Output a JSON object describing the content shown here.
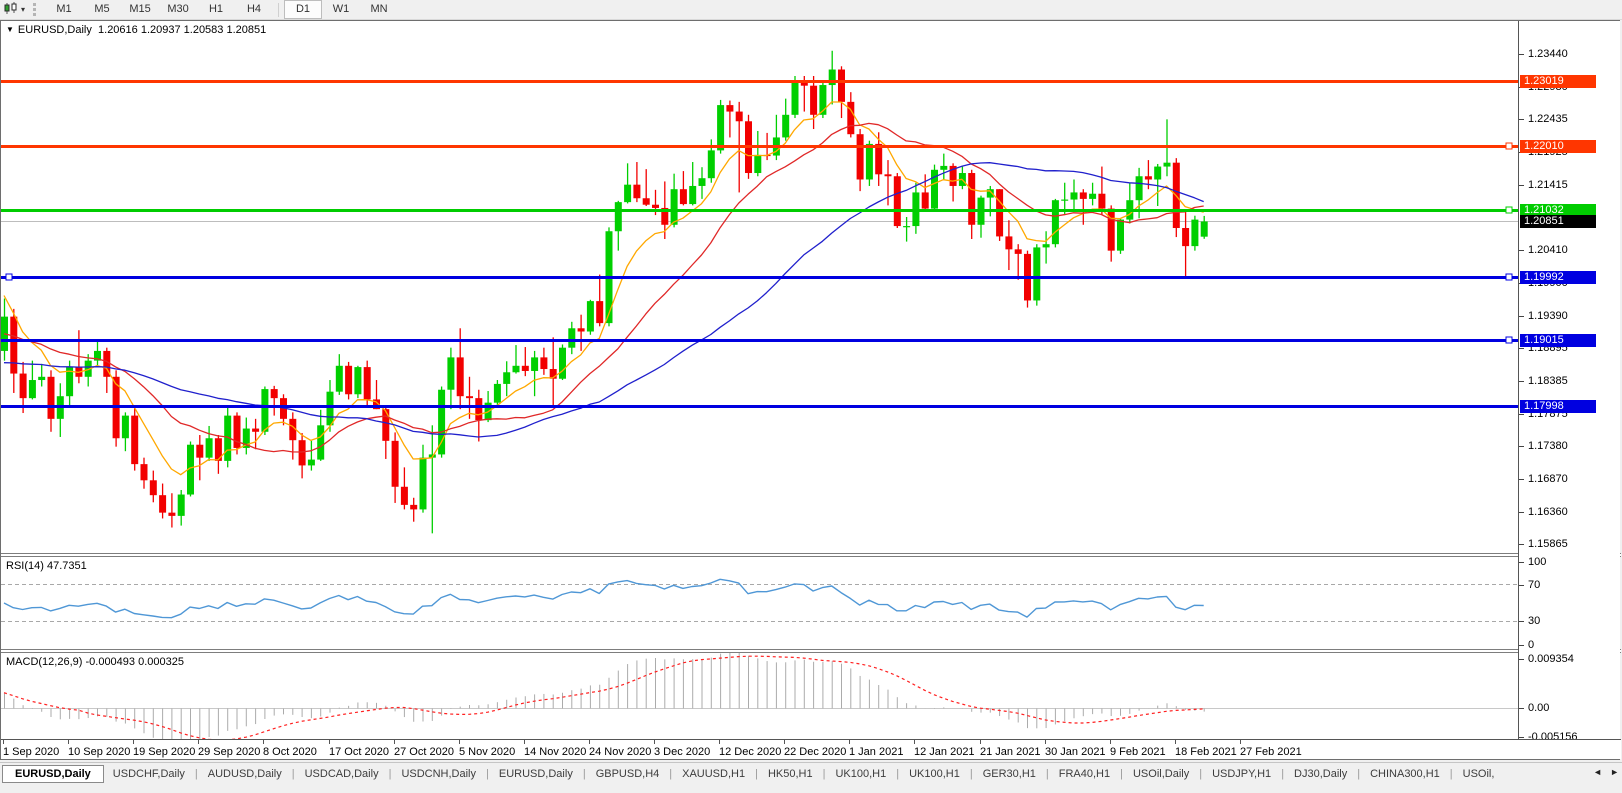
{
  "icons": {
    "collapse": "▼",
    "caret": "▾",
    "scroll_left": "◄",
    "scroll_right": "►"
  },
  "toolbar": {
    "timeframes": [
      "M1",
      "M5",
      "M15",
      "M30",
      "H1",
      "H4",
      "D1",
      "W1",
      "MN"
    ],
    "active_timeframe": "D1"
  },
  "chart_header": {
    "symbol": "EURUSD,Daily",
    "ohlc": "1.20616 1.20937 1.20583 1.20851"
  },
  "chart_data": {
    "type": "candlestick",
    "symbol": "EURUSD",
    "period": "Daily",
    "current_bar": {
      "open": 1.20616,
      "high": 1.20937,
      "low": 1.20583,
      "close": 1.20851
    },
    "up_color": "#00CF00",
    "down_color": "#F20000",
    "price_axis": {
      "ticks": [
        "1.23440",
        "1.22930",
        "1.22435",
        "1.21925",
        "1.21415",
        "1.20410",
        "1.19900",
        "1.19390",
        "1.18895",
        "1.18385",
        "1.17875",
        "1.17380",
        "1.16870",
        "1.16360",
        "1.15865"
      ]
    },
    "h_lines": [
      {
        "price": 1.23019,
        "label": "1.23019",
        "color": "#FF3600",
        "width": 3,
        "handle_left": false,
        "handle_right": false
      },
      {
        "price": 1.2201,
        "label": "1.22010",
        "color": "#FF3600",
        "width": 3,
        "handle_left": false,
        "handle_right": true
      },
      {
        "price": 1.21032,
        "label": "1.21032",
        "color": "#00CC00",
        "width": 3,
        "handle_left": false,
        "handle_right": true
      },
      {
        "price": 1.19992,
        "label": "1.19992",
        "color": "#0000E0",
        "width": 3,
        "handle_left": true,
        "handle_right": true
      },
      {
        "price": 1.19015,
        "label": "1.19015",
        "color": "#0000E0",
        "width": 3,
        "handle_left": false,
        "handle_right": true
      },
      {
        "price": 1.17998,
        "label": "1.17998",
        "color": "#0000E0",
        "width": 3,
        "handle_left": false,
        "handle_right": false
      }
    ],
    "bid_line": {
      "price": 1.20851,
      "label": "1.20851",
      "line_color": "#BDBDBD",
      "label_bg": "#000000"
    },
    "moving_averages": [
      {
        "name": "fast",
        "type": "ema",
        "period": 8,
        "seed": 1.198,
        "color": "#FFA800"
      },
      {
        "name": "medium",
        "type": "sma",
        "period": 18,
        "seed": 1.191,
        "color": "#E02828"
      },
      {
        "name": "slow",
        "type": "sma",
        "period": 40,
        "seed": 1.1865,
        "color": "#2020CC"
      }
    ],
    "candles": [
      [
        1.1885,
        1.1966,
        1.187,
        1.1938
      ],
      [
        1.1938,
        1.195,
        1.182,
        1.185
      ],
      [
        1.185,
        1.1868,
        1.1789,
        1.1812
      ],
      [
        1.1812,
        1.187,
        1.181,
        1.184
      ],
      [
        1.184,
        1.1865,
        1.183,
        1.1845
      ],
      [
        1.1845,
        1.1855,
        1.176,
        1.178
      ],
      [
        1.178,
        1.1835,
        1.1752,
        1.1815
      ],
      [
        1.1815,
        1.187,
        1.18,
        1.186
      ],
      [
        1.186,
        1.1917,
        1.1835,
        1.1845
      ],
      [
        1.1845,
        1.188,
        1.183,
        1.187
      ],
      [
        1.187,
        1.19,
        1.186,
        1.1885
      ],
      [
        1.1885,
        1.189,
        1.182,
        1.1845
      ],
      [
        1.1845,
        1.1855,
        1.1737,
        1.175
      ],
      [
        1.175,
        1.179,
        1.173,
        1.1785
      ],
      [
        1.1785,
        1.18,
        1.17,
        1.171
      ],
      [
        1.171,
        1.172,
        1.1672,
        1.1685
      ],
      [
        1.1685,
        1.17,
        1.1651,
        1.1662
      ],
      [
        1.1662,
        1.168,
        1.1626,
        1.1635
      ],
      [
        1.1635,
        1.1665,
        1.1612,
        1.163
      ],
      [
        1.163,
        1.167,
        1.1615,
        1.1663
      ],
      [
        1.1663,
        1.1745,
        1.166,
        1.174
      ],
      [
        1.174,
        1.1755,
        1.1685,
        1.172
      ],
      [
        1.172,
        1.1769,
        1.1715,
        1.175
      ],
      [
        1.175,
        1.1755,
        1.1695,
        1.1715
      ],
      [
        1.1715,
        1.1798,
        1.1705,
        1.1785
      ],
      [
        1.1785,
        1.179,
        1.1725,
        1.1735
      ],
      [
        1.1735,
        1.1782,
        1.1725,
        1.1765
      ],
      [
        1.1765,
        1.178,
        1.1733,
        1.176
      ],
      [
        1.176,
        1.183,
        1.1755,
        1.1826
      ],
      [
        1.1826,
        1.1831,
        1.1785,
        1.1812
      ],
      [
        1.1812,
        1.1818,
        1.177,
        1.178
      ],
      [
        1.178,
        1.179,
        1.1717,
        1.1747
      ],
      [
        1.1747,
        1.1758,
        1.1688,
        1.1708
      ],
      [
        1.1708,
        1.1746,
        1.17,
        1.1717
      ],
      [
        1.1717,
        1.1794,
        1.1715,
        1.177
      ],
      [
        1.177,
        1.184,
        1.176,
        1.1822
      ],
      [
        1.1822,
        1.188,
        1.1817,
        1.1862
      ],
      [
        1.1862,
        1.1868,
        1.181,
        1.1818
      ],
      [
        1.1818,
        1.1862,
        1.1812,
        1.186
      ],
      [
        1.186,
        1.187,
        1.18,
        1.181
      ],
      [
        1.181,
        1.184,
        1.1795,
        1.1795
      ],
      [
        1.1795,
        1.18,
        1.1718,
        1.1746
      ],
      [
        1.1746,
        1.1759,
        1.165,
        1.1675
      ],
      [
        1.1675,
        1.1705,
        1.164,
        1.1647
      ],
      [
        1.1647,
        1.1658,
        1.1621,
        1.164
      ],
      [
        1.164,
        1.174,
        1.1635,
        1.172
      ],
      [
        1.172,
        1.177,
        1.1603,
        1.1725
      ],
      [
        1.1725,
        1.183,
        1.172,
        1.1825
      ],
      [
        1.1825,
        1.189,
        1.1795,
        1.1875
      ],
      [
        1.1875,
        1.192,
        1.1795,
        1.1815
      ],
      [
        1.1815,
        1.1845,
        1.178,
        1.1812
      ],
      [
        1.1812,
        1.1825,
        1.1745,
        1.1778
      ],
      [
        1.1778,
        1.1823,
        1.1775,
        1.1805
      ],
      [
        1.1805,
        1.184,
        1.18,
        1.1834
      ],
      [
        1.1834,
        1.1869,
        1.1815,
        1.1852
      ],
      [
        1.1852,
        1.1894,
        1.185,
        1.1862
      ],
      [
        1.1862,
        1.1891,
        1.1846,
        1.1854
      ],
      [
        1.1854,
        1.1885,
        1.1815,
        1.1875
      ],
      [
        1.1875,
        1.189,
        1.1848,
        1.1857
      ],
      [
        1.1857,
        1.1906,
        1.18,
        1.1842
      ],
      [
        1.1842,
        1.1895,
        1.184,
        1.189
      ],
      [
        1.189,
        1.193,
        1.188,
        1.192
      ],
      [
        1.192,
        1.1941,
        1.1885,
        1.1915
      ],
      [
        1.1915,
        1.1964,
        1.191,
        1.1962
      ],
      [
        1.1962,
        1.2003,
        1.1923,
        1.1928
      ],
      [
        1.1928,
        1.2076,
        1.1923,
        1.207
      ],
      [
        1.207,
        1.2117,
        1.204,
        1.2115
      ],
      [
        1.2115,
        1.2175,
        1.2113,
        1.2142
      ],
      [
        1.2142,
        1.2177,
        1.2115,
        1.2121
      ],
      [
        1.2121,
        1.2166,
        1.2109,
        1.2111
      ],
      [
        1.2111,
        1.2134,
        1.2095,
        1.2106
      ],
      [
        1.2106,
        1.2147,
        1.2058,
        1.208
      ],
      [
        1.208,
        1.2159,
        1.2076,
        1.2135
      ],
      [
        1.2135,
        1.2163,
        1.211,
        1.2112
      ],
      [
        1.2112,
        1.2177,
        1.211,
        1.214
      ],
      [
        1.214,
        1.2169,
        1.212,
        1.2152
      ],
      [
        1.2152,
        1.2212,
        1.2145,
        1.2195
      ],
      [
        1.2195,
        1.2273,
        1.219,
        1.2265
      ],
      [
        1.2265,
        1.2272,
        1.2215,
        1.2255
      ],
      [
        1.2255,
        1.227,
        1.213,
        1.224
      ],
      [
        1.224,
        1.225,
        1.2151,
        1.216
      ],
      [
        1.216,
        1.2225,
        1.2155,
        1.2188
      ],
      [
        1.2188,
        1.2222,
        1.218,
        1.2187
      ],
      [
        1.2187,
        1.225,
        1.218,
        1.2215
      ],
      [
        1.2215,
        1.2275,
        1.221,
        1.225
      ],
      [
        1.225,
        1.231,
        1.2245,
        1.23
      ],
      [
        1.23,
        1.231,
        1.2255,
        1.2295
      ],
      [
        1.2295,
        1.231,
        1.2228,
        1.225
      ],
      [
        1.225,
        1.2303,
        1.2245,
        1.2296
      ],
      [
        1.2296,
        1.2349,
        1.2266,
        1.232
      ],
      [
        1.232,
        1.2325,
        1.2245,
        1.227
      ],
      [
        1.227,
        1.2285,
        1.2215,
        1.222
      ],
      [
        1.222,
        1.2228,
        1.2132,
        1.215
      ],
      [
        1.215,
        1.221,
        1.214,
        1.2205
      ],
      [
        1.2205,
        1.2223,
        1.214,
        1.2158
      ],
      [
        1.2158,
        1.218,
        1.211,
        1.2155
      ],
      [
        1.2155,
        1.216,
        1.2075,
        1.2078
      ],
      [
        1.2078,
        1.2092,
        1.2054,
        1.2078
      ],
      [
        1.2078,
        1.2145,
        1.2066,
        1.213
      ],
      [
        1.213,
        1.2158,
        1.2102,
        1.2105
      ],
      [
        1.2105,
        1.2173,
        1.21,
        1.2165
      ],
      [
        1.2165,
        1.219,
        1.215,
        1.2171
      ],
      [
        1.2171,
        1.2175,
        1.2116,
        1.214
      ],
      [
        1.214,
        1.217,
        1.2135,
        1.216
      ],
      [
        1.216,
        1.2165,
        1.2058,
        1.208
      ],
      [
        1.208,
        1.2125,
        1.206,
        1.2122
      ],
      [
        1.2122,
        1.214,
        1.2093,
        1.2135
      ],
      [
        1.2135,
        1.2135,
        1.2055,
        1.2062
      ],
      [
        1.2062,
        1.2087,
        1.201,
        1.2042
      ],
      [
        1.2042,
        1.205,
        1.1995,
        1.2035
      ],
      [
        1.2035,
        1.204,
        1.1952,
        1.1963
      ],
      [
        1.1963,
        1.205,
        1.1955,
        1.2045
      ],
      [
        1.2045,
        1.207,
        1.202,
        1.205
      ],
      [
        1.205,
        1.212,
        1.2045,
        1.2118
      ],
      [
        1.2118,
        1.2145,
        1.2095,
        1.2119
      ],
      [
        1.2119,
        1.215,
        1.21,
        1.213
      ],
      [
        1.213,
        1.2135,
        1.208,
        1.212
      ],
      [
        1.212,
        1.2145,
        1.211,
        1.2128
      ],
      [
        1.2128,
        1.217,
        1.2095,
        1.2105
      ],
      [
        1.2105,
        1.211,
        1.2023,
        1.204
      ],
      [
        1.204,
        1.209,
        1.2035,
        1.2088
      ],
      [
        1.2088,
        1.2145,
        1.2082,
        1.2118
      ],
      [
        1.2118,
        1.2168,
        1.209,
        1.2155
      ],
      [
        1.2155,
        1.218,
        1.2135,
        1.215
      ],
      [
        1.215,
        1.2174,
        1.2109,
        1.217
      ],
      [
        1.217,
        1.2243,
        1.2155,
        1.2176
      ],
      [
        1.2176,
        1.2183,
        1.2061,
        1.2075
      ],
      [
        1.2075,
        1.2101,
        1.1999,
        1.2047
      ],
      [
        1.2047,
        1.2094,
        1.204,
        1.2088
      ],
      [
        1.20616,
        1.20937,
        1.20583,
        1.20851
      ]
    ],
    "x_axis": {
      "labels": [
        "1 Sep 2020",
        "10 Sep 2020",
        "19 Sep 2020",
        "29 Sep 2020",
        "8 Oct 2020",
        "17 Oct 2020",
        "27 Oct 2020",
        "5 Nov 2020",
        "14 Nov 2020",
        "24 Nov 2020",
        "3 Dec 2020",
        "12 Dec 2020",
        "22 Dec 2020",
        "1 Jan 2021",
        "12 Jan 2021",
        "21 Jan 2021",
        "30 Jan 2021",
        "9 Feb 2021",
        "18 Feb 2021",
        "27 Feb 2021"
      ],
      "label_every_bars": 7
    },
    "rsi": {
      "name": "RSI(14)",
      "value": "47.7351",
      "period": 14,
      "line_color": "#4F97D6",
      "levels": [
        70,
        30
      ],
      "axis_ticks": [
        "100",
        "70",
        "30",
        "0"
      ]
    },
    "macd": {
      "name": "MACD(12,26,9)",
      "values": "-0.000493 0.000325",
      "fast": 12,
      "slow": 26,
      "signal": 9,
      "hist_color": "#ABABAB",
      "signal_color": "#FF2020",
      "axis_ticks": [
        "0.009354",
        "0.00",
        "-0.005156"
      ],
      "max": 0.009354,
      "min": -0.005156
    }
  },
  "tab_bar": {
    "tabs": [
      "EURUSD,Daily",
      "USDCHF,Daily",
      "AUDUSD,Daily",
      "USDCAD,Daily",
      "USDCNH,Daily",
      "EURUSD,Daily",
      "GBPUSD,H4",
      "XAUUSD,H1",
      "HK50,H1",
      "UK100,H1",
      "UK100,H1",
      "GER30,H1",
      "FRA40,H1",
      "USOil,Daily",
      "USDJPY,H1",
      "DJ30,Daily",
      "CHINA300,H1",
      "USOil,"
    ],
    "active_index": 0
  }
}
